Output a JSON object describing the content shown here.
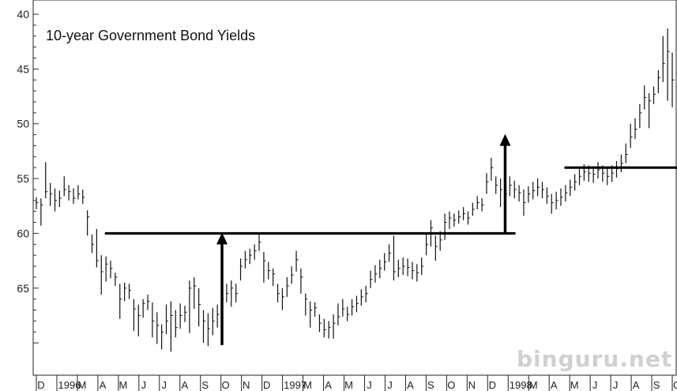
{
  "chart_data": {
    "type": "bar",
    "subtype": "price-bar",
    "title": "10-year Government Bond Yields",
    "y_axis": {
      "inverted": true,
      "ylim": [
        40,
        71
      ],
      "ticks": [
        40,
        45,
        50,
        55,
        60,
        65
      ]
    },
    "x_axis": {
      "labels": [
        "D",
        "1996",
        "M",
        "A",
        "M",
        "J",
        "J",
        "A",
        "S",
        "O",
        "N",
        "D",
        "1997",
        "M",
        "A",
        "M",
        "J",
        "J",
        "A",
        "S",
        "O",
        "N",
        "D",
        "1998",
        "M",
        "A",
        "M",
        "J",
        "J",
        "A",
        "S",
        "O"
      ]
    },
    "weekly_bars": [
      [
        57.2,
        56.7,
        57.8
      ],
      [
        57.4,
        56.8,
        59.3
      ],
      [
        56.2,
        53.5,
        56.8
      ],
      [
        56.4,
        55.4,
        57.5
      ],
      [
        57.0,
        55.9,
        58.0
      ],
      [
        56.8,
        56.1,
        57.6
      ],
      [
        56.0,
        54.8,
        56.6
      ],
      [
        56.2,
        55.6,
        57.0
      ],
      [
        56.8,
        55.9,
        57.3
      ],
      [
        56.4,
        55.6,
        56.9
      ],
      [
        56.7,
        56.0,
        57.3
      ],
      [
        58.5,
        57.9,
        60.2
      ],
      [
        61.0,
        60.1,
        61.8
      ],
      [
        62.5,
        59.6,
        63.1
      ],
      [
        63.5,
        62.0,
        65.6
      ],
      [
        62.8,
        62.1,
        64.4
      ],
      [
        63.2,
        62.5,
        64.1
      ],
      [
        64.0,
        63.6,
        64.8
      ],
      [
        66.0,
        64.6,
        67.8
      ],
      [
        65.0,
        64.5,
        66.2
      ],
      [
        65.2,
        64.6,
        66.0
      ],
      [
        66.9,
        66.0,
        68.9
      ],
      [
        67.5,
        66.5,
        69.4
      ],
      [
        66.4,
        66.0,
        67.7
      ],
      [
        66.2,
        65.6,
        67.0
      ],
      [
        68.0,
        66.3,
        69.5
      ],
      [
        68.4,
        67.2,
        70.1
      ],
      [
        69.0,
        68.3,
        70.6
      ],
      [
        68.0,
        66.5,
        69.2
      ],
      [
        67.5,
        66.2,
        70.8
      ],
      [
        68.6,
        67.0,
        69.5
      ],
      [
        67.5,
        66.4,
        68.7
      ],
      [
        67.2,
        66.6,
        68.1
      ],
      [
        65.0,
        64.3,
        69.1
      ],
      [
        64.8,
        64.0,
        66.9
      ],
      [
        66.5,
        65.0,
        68.5
      ],
      [
        68.0,
        67.0,
        70.0
      ],
      [
        68.7,
        67.3,
        70.3
      ],
      [
        68.0,
        66.8,
        69.3
      ],
      [
        67.4,
        66.5,
        68.6
      ],
      [
        66.0,
        65.0,
        67.2
      ],
      [
        65.5,
        64.6,
        66.3
      ],
      [
        65.0,
        64.3,
        66.7
      ],
      [
        65.5,
        64.6,
        66.3
      ],
      [
        63.0,
        62.3,
        64.3
      ],
      [
        62.4,
        61.6,
        63.2
      ],
      [
        62.0,
        61.4,
        62.8
      ],
      [
        61.6,
        61.0,
        62.4
      ],
      [
        60.8,
        60.1,
        61.6
      ],
      [
        62.5,
        61.7,
        64.5
      ],
      [
        63.4,
        62.6,
        64.2
      ],
      [
        63.7,
        63.2,
        64.8
      ],
      [
        65.5,
        64.6,
        66.3
      ],
      [
        65.8,
        65.0,
        67.0
      ],
      [
        64.8,
        64.0,
        65.8
      ],
      [
        63.8,
        63.0,
        64.6
      ],
      [
        62.4,
        61.6,
        63.5
      ],
      [
        64.0,
        63.2,
        65.5
      ],
      [
        66.0,
        65.5,
        67.5
      ],
      [
        67.0,
        66.2,
        68.6
      ],
      [
        66.8,
        66.3,
        67.6
      ],
      [
        68.2,
        67.4,
        69.0
      ],
      [
        68.8,
        67.8,
        69.5
      ],
      [
        68.6,
        68.0,
        69.6
      ],
      [
        68.2,
        67.4,
        69.6
      ],
      [
        67.6,
        66.4,
        68.4
      ],
      [
        66.9,
        66.0,
        67.6
      ],
      [
        67.4,
        66.7,
        68.0
      ],
      [
        66.7,
        66.0,
        67.5
      ],
      [
        66.4,
        65.7,
        67.2
      ],
      [
        65.8,
        65.1,
        66.6
      ],
      [
        65.5,
        64.8,
        66.3
      ],
      [
        64.2,
        63.4,
        65.0
      ],
      [
        63.7,
        62.9,
        64.5
      ],
      [
        63.2,
        62.4,
        64.1
      ],
      [
        62.6,
        61.8,
        63.4
      ],
      [
        61.8,
        61.0,
        62.6
      ],
      [
        63.5,
        60.2,
        64.3
      ],
      [
        63.2,
        62.4,
        64.0
      ],
      [
        63.0,
        62.2,
        63.8
      ],
      [
        63.1,
        62.3,
        63.9
      ],
      [
        63.4,
        62.6,
        64.2
      ],
      [
        63.6,
        62.8,
        64.4
      ],
      [
        63.0,
        62.2,
        63.8
      ],
      [
        61.0,
        60.1,
        62.0
      ],
      [
        59.5,
        58.8,
        61.2
      ],
      [
        61.2,
        60.2,
        62.5
      ],
      [
        60.6,
        59.8,
        61.6
      ],
      [
        59.0,
        58.2,
        60.6
      ],
      [
        58.6,
        58.0,
        59.6
      ],
      [
        58.8,
        58.2,
        59.4
      ],
      [
        58.5,
        57.9,
        59.1
      ],
      [
        58.2,
        57.6,
        58.8
      ],
      [
        58.6,
        58.0,
        59.2
      ],
      [
        57.8,
        57.2,
        58.4
      ],
      [
        57.2,
        56.6,
        57.8
      ],
      [
        57.4,
        56.8,
        58.0
      ],
      [
        55.3,
        54.5,
        56.4
      ],
      [
        54.0,
        53.1,
        55.2
      ],
      [
        55.6,
        54.8,
        56.4
      ],
      [
        56.0,
        55.0,
        57.6
      ],
      [
        56.4,
        55.6,
        57.2
      ],
      [
        55.6,
        54.8,
        56.6
      ],
      [
        56.0,
        55.2,
        56.8
      ],
      [
        56.3,
        55.6,
        57.1
      ],
      [
        57.2,
        56.0,
        58.4
      ],
      [
        56.4,
        55.7,
        57.2
      ],
      [
        56.1,
        55.3,
        56.9
      ],
      [
        55.8,
        55.0,
        56.6
      ],
      [
        56.0,
        55.3,
        56.8
      ],
      [
        56.6,
        55.8,
        57.3
      ],
      [
        57.2,
        56.4,
        58.2
      ],
      [
        57.0,
        56.2,
        57.8
      ],
      [
        56.7,
        55.9,
        57.5
      ],
      [
        56.3,
        55.6,
        57.1
      ],
      [
        55.8,
        55.1,
        56.6
      ],
      [
        55.3,
        54.6,
        56.1
      ],
      [
        54.8,
        54.1,
        55.6
      ],
      [
        54.4,
        53.7,
        55.2
      ],
      [
        54.5,
        53.8,
        55.3
      ],
      [
        54.6,
        53.9,
        55.4
      ],
      [
        54.2,
        53.5,
        55.0
      ],
      [
        54.5,
        53.8,
        55.3
      ],
      [
        54.8,
        54.1,
        55.6
      ],
      [
        54.5,
        53.8,
        55.3
      ],
      [
        54.1,
        53.4,
        54.9
      ],
      [
        53.6,
        52.8,
        54.4
      ],
      [
        52.8,
        51.8,
        53.6
      ],
      [
        51.2,
        50.0,
        52.2
      ],
      [
        50.5,
        49.5,
        51.4
      ],
      [
        49.0,
        48.2,
        50.4
      ],
      [
        47.6,
        46.5,
        48.7
      ],
      [
        47.9,
        47.2,
        50.4
      ],
      [
        47.3,
        46.6,
        48.2
      ],
      [
        45.8,
        45.1,
        47.2
      ],
      [
        44.5,
        42.0,
        46.2
      ],
      [
        43.4,
        41.3,
        47.9
      ],
      [
        46.0,
        43.5,
        48.5
      ]
    ],
    "annotations": {
      "lines": [
        {
          "name": "neckline-1996-1997",
          "x_start_week": 15,
          "x_end_week": 103,
          "y": 60.0
        },
        {
          "name": "neckline-1998",
          "x_start_week": 114,
          "x_end_week": 154,
          "y": 54.0
        }
      ],
      "arrows": [
        {
          "name": "target-arrow-1",
          "x_week": 40,
          "from": 70.2,
          "to": 60.0
        },
        {
          "name": "target-arrow-2",
          "x_week": 101,
          "from": 60.0,
          "to": 51.0
        }
      ]
    }
  },
  "watermark": "binguru.net"
}
